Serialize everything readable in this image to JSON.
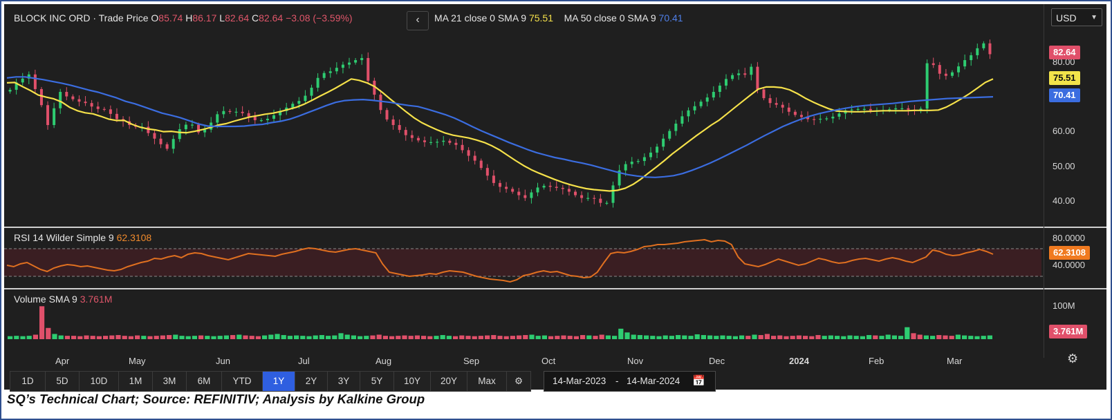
{
  "caption": "SQ’s Technical Chart; Source: REFINITIV; Analysis by Kalkine Group",
  "ui": {
    "back_glyph": "‹",
    "currency": "USD",
    "date_from": "14-Mar-2023",
    "date_sep": "-",
    "date_to": "14-Mar-2024",
    "ranges": [
      "1D",
      "5D",
      "10D",
      "1M",
      "3M",
      "6M",
      "YTD",
      "1Y",
      "2Y",
      "3Y",
      "5Y",
      "10Y",
      "20Y",
      "Max"
    ],
    "active_range": "1Y"
  },
  "chart_data": {
    "type": "candlestick",
    "header": {
      "instrument": "BLOCK INC ORD · Trade Price",
      "o_label": "O",
      "open": "85.74",
      "h_label": "H",
      "high": "86.17",
      "l_label": "L",
      "low": "82.64",
      "c_label": "C",
      "close": "82.64",
      "change": "−3.08 (−3.59%)"
    },
    "last_price_text": "82.64",
    "price_ticks": [
      "80.00",
      "60.00",
      "50.00",
      "40.00"
    ],
    "price_range": [
      34,
      91
    ],
    "months": [
      "Apr",
      "May",
      "Jun",
      "Jul",
      "Aug",
      "Sep",
      "Oct",
      "Nov",
      "Dec",
      "2024",
      "Feb",
      "Mar"
    ],
    "close_series": [
      72.4,
      74.5,
      75.6,
      76.8,
      72.6,
      68.0,
      62.3,
      67.1,
      71.8,
      70.5,
      69.7,
      69.0,
      68.6,
      67.6,
      66.9,
      66.8,
      65.5,
      64.0,
      63.4,
      62.3,
      61.8,
      61.8,
      60.0,
      58.4,
      56.8,
      55.5,
      58.3,
      61.1,
      62.4,
      62.4,
      60.2,
      61.0,
      63.0,
      65.4,
      66.3,
      66.1,
      66.1,
      65.7,
      64.7,
      63.7,
      63.7,
      64.1,
      65.1,
      66.3,
      67.3,
      68.4,
      69.2,
      70.7,
      73.0,
      75.8,
      77.2,
      77.7,
      78.7,
      79.6,
      80.2,
      80.9,
      81.5,
      75.0,
      71.0,
      66.6,
      63.9,
      62.3,
      60.9,
      59.4,
      58.6,
      57.9,
      57.4,
      57.4,
      57.5,
      57.8,
      57.2,
      56.6,
      55.1,
      53.5,
      52.1,
      50.0,
      47.8,
      45.7,
      44.6,
      44.0,
      43.2,
      42.2,
      41.4,
      43.0,
      44.4,
      44.9,
      44.6,
      44.3,
      44.0,
      43.2,
      42.2,
      41.4,
      41.4,
      41.2,
      40.0,
      40.0,
      45.0,
      49.3,
      51.1,
      51.8,
      52.0,
      53.1,
      54.4,
      56.1,
      58.4,
      60.6,
      62.7,
      64.8,
      66.5,
      67.7,
      69.0,
      70.2,
      71.8,
      73.6,
      75.5,
      76.6,
      77.1,
      76.7,
      79.0,
      72.5,
      70.0,
      68.6,
      68.1,
      67.3,
      66.1,
      65.2,
      64.6,
      64.0,
      63.9,
      64.1,
      64.2,
      64.7,
      65.6,
      66.5,
      66.7,
      66.9,
      66.9,
      66.5,
      66.5,
      66.6,
      66.8,
      67.1,
      67.1,
      66.7,
      66.3,
      67.0,
      80.0,
      79.5,
      77.0,
      76.4,
      77.4,
      79.1,
      80.9,
      82.3,
      84.3,
      85.7,
      82.6
    ],
    "ma21": {
      "label": "MA 21 close 0 SMA 9",
      "value_text": "75.51",
      "values": [
        74.4,
        74.5,
        73.3,
        72.2,
        70.9,
        70.3,
        69.8,
        68.9,
        67.4,
        66.4,
        65.8,
        65.5,
        64.8,
        64.0,
        63.6,
        63.6,
        62.5,
        61.7,
        61.2,
        60.9,
        60.4,
        60.5,
        60.2,
        60.1,
        60.5,
        61.0,
        61.6,
        62.3,
        62.7,
        63.4,
        64.0,
        64.6,
        65.0,
        65.4,
        65.7,
        66.2,
        66.8,
        67.4,
        68.3,
        69.4,
        70.6,
        71.7,
        72.9,
        74.2,
        75.5,
        75.1,
        74.4,
        73.3,
        71.6,
        69.7,
        67.9,
        66.1,
        64.4,
        63.0,
        61.9,
        60.9,
        60.0,
        59.4,
        59.0,
        58.6,
        58.0,
        57.3,
        56.3,
        55.1,
        53.6,
        52.1,
        50.7,
        49.5,
        48.5,
        47.6,
        46.7,
        45.9,
        45.2,
        44.6,
        44.1,
        43.8,
        43.6,
        43.4,
        43.6,
        44.2,
        45.3,
        46.8,
        48.6,
        50.3,
        52.1,
        54.0,
        55.7,
        57.4,
        59.1,
        60.7,
        62.3,
        63.7,
        65.5,
        67.3,
        69.1,
        70.9,
        72.6,
        73.2,
        73.2,
        73.0,
        72.4,
        71.3,
        70.0,
        68.9,
        67.9,
        67.0,
        66.3,
        66.2,
        66.1,
        66.1,
        66.2,
        66.3,
        66.4,
        66.4,
        66.4,
        66.4,
        66.5,
        66.5,
        66.5,
        66.6,
        67.4,
        68.6,
        69.9,
        71.3,
        72.9,
        74.5,
        75.5
      ]
    },
    "ma50": {
      "label": "MA 50 close 0 SMA 9",
      "value_text": "70.41",
      "values": [
        75.8,
        76.1,
        76.1,
        75.7,
        75.3,
        74.8,
        74.3,
        73.7,
        73.0,
        72.3,
        71.7,
        70.9,
        70.1,
        69.1,
        68.4,
        67.5,
        66.6,
        65.7,
        65.1,
        64.4,
        63.5,
        62.6,
        62.0,
        61.9,
        61.9,
        61.9,
        62.0,
        62.3,
        62.5,
        63.0,
        63.4,
        64.0,
        64.9,
        65.9,
        66.9,
        67.9,
        68.8,
        69.3,
        69.5,
        69.6,
        69.4,
        69.1,
        68.8,
        68.3,
        67.9,
        67.6,
        66.9,
        66.1,
        65.3,
        64.3,
        63.1,
        61.8,
        60.6,
        59.5,
        58.4,
        57.3,
        56.3,
        55.3,
        54.4,
        53.7,
        53.0,
        52.5,
        51.9,
        51.4,
        50.8,
        50.1,
        49.4,
        48.7,
        48.1,
        47.7,
        47.4,
        47.3,
        47.5,
        47.8,
        48.4,
        49.3,
        50.3,
        51.4,
        52.6,
        53.9,
        55.2,
        56.5,
        57.9,
        59.3,
        60.6,
        61.9,
        63.0,
        64.0,
        64.9,
        65.6,
        66.2,
        66.7,
        67.2,
        67.6,
        67.9,
        68.1,
        68.3,
        68.5,
        68.8,
        69.1,
        69.3,
        69.5,
        69.7,
        69.9,
        70.0,
        70.1,
        70.2,
        70.3,
        70.4
      ]
    },
    "rsi": {
      "label": "RSI 14 Wilder Simple 9",
      "value_text": "62.3108",
      "ticks": [
        "80.0000",
        "40.0000"
      ],
      "range": [
        20,
        90
      ],
      "bands": [
        70,
        30
      ],
      "values": [
        46,
        44,
        48,
        50,
        45,
        40,
        37,
        42,
        45,
        47,
        46,
        44,
        45,
        43,
        41,
        39,
        38,
        40,
        44,
        47,
        50,
        52,
        56,
        55,
        58,
        60,
        57,
        62,
        64,
        63,
        60,
        58,
        56,
        54,
        57,
        60,
        63,
        62,
        61,
        60,
        59,
        62,
        64,
        66,
        69,
        71,
        70,
        68,
        66,
        65,
        67,
        69,
        70,
        68,
        66,
        64,
        48,
        36,
        34,
        32,
        30,
        31,
        32,
        34,
        33,
        36,
        38,
        37,
        36,
        33,
        30,
        28,
        26,
        25,
        24,
        22,
        25,
        31,
        33,
        36,
        38,
        36,
        37,
        34,
        31,
        30,
        28,
        29,
        36,
        50,
        63,
        65,
        64,
        66,
        69,
        73,
        74,
        76,
        76,
        77,
        78,
        80,
        81,
        82,
        83,
        80,
        82,
        81,
        76,
        58,
        48,
        46,
        44,
        47,
        51,
        55,
        52,
        49,
        46,
        48,
        52,
        56,
        54,
        51,
        49,
        50,
        53,
        55,
        56,
        54,
        52,
        55,
        57,
        55,
        52,
        50,
        54,
        58,
        68,
        66,
        62,
        60,
        61,
        64,
        66,
        69,
        66,
        62
      ]
    },
    "volume": {
      "label": "Volume SMA 9",
      "value_text": "3.761M",
      "ticks": [
        "100M"
      ],
      "range": [
        0,
        120
      ],
      "values": [
        8,
        9,
        8,
        9,
        12,
        88,
        30,
        14,
        10,
        9,
        9,
        8,
        10,
        9,
        8,
        9,
        10,
        11,
        9,
        8,
        10,
        9,
        8,
        9,
        10,
        11,
        12,
        9,
        8,
        9,
        10,
        9,
        8,
        9,
        10,
        11,
        12,
        10,
        9,
        8,
        10,
        12,
        14,
        11,
        9,
        10,
        9,
        8,
        10,
        11,
        9,
        10,
        16,
        12,
        10,
        8,
        9,
        10,
        12,
        9,
        8,
        9,
        10,
        9,
        10,
        9,
        8,
        9,
        11,
        9,
        8,
        10,
        9,
        8,
        9,
        10,
        11,
        9,
        8,
        9,
        10,
        11,
        12,
        9,
        10,
        8,
        9,
        10,
        9,
        8,
        11,
        10,
        9,
        12,
        10,
        9,
        28,
        18,
        12,
        11,
        10,
        9,
        8,
        10,
        9,
        11,
        10,
        9,
        13,
        11,
        10,
        9,
        10,
        9,
        8,
        10,
        9,
        12,
        11,
        14,
        9,
        10,
        8,
        9,
        10,
        9,
        8,
        11,
        9,
        10,
        9,
        8,
        10,
        9,
        8,
        11,
        10,
        9,
        12,
        10,
        9,
        32,
        16,
        12,
        10,
        9,
        11,
        10,
        9,
        12,
        10,
        9,
        8,
        9,
        10
      ]
    },
    "colors": {
      "up": "#2ecc71",
      "down": "#e0506a",
      "ma21": "#f5e14a",
      "ma50": "#3b6de0",
      "rsi": "#e07020",
      "grid": "#2c2c2c"
    }
  }
}
